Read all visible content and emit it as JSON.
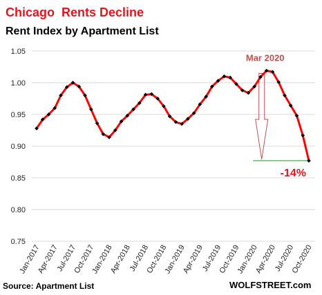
{
  "chart_data": {
    "type": "line",
    "title": "Chicago  Rents Decline",
    "subtitle": "Rent Index by Apartment List",
    "ylim": [
      0.75,
      1.05
    ],
    "yticks": [
      "0.75",
      "0.80",
      "0.85",
      "0.90",
      "0.95",
      "1.00",
      "1.05"
    ],
    "xtick_labels": [
      "Jan-2017",
      "Apr-2017",
      "Jul-2017",
      "Oct-2017",
      "Jan-2018",
      "Apr-2018",
      "Jul-2018",
      "Oct-2018",
      "Jan-2019",
      "Apr-2019",
      "Jul-2019",
      "Oct-2019",
      "Jan-2020",
      "Apr-2020",
      "Jul-2020",
      "Oct-2020"
    ],
    "grid": true,
    "series": [
      {
        "color": "#ff0000",
        "marker_color": "#000000",
        "values": [
          0.928,
          0.942,
          0.95,
          0.96,
          0.98,
          0.993,
          1.0,
          0.994,
          0.98,
          0.958,
          0.936,
          0.919,
          0.914,
          0.925,
          0.939,
          0.948,
          0.958,
          0.968,
          0.981,
          0.982,
          0.975,
          0.963,
          0.947,
          0.938,
          0.935,
          0.943,
          0.952,
          0.966,
          0.978,
          0.994,
          1.003,
          1.01,
          1.008,
          0.998,
          0.988,
          0.984,
          0.994,
          1.009,
          1.019,
          1.017,
          1.001,
          0.98,
          0.964,
          0.948,
          0.917,
          0.877
        ]
      }
    ],
    "annotations": {
      "peak_label": "Mar 2020",
      "change_label": "-14%",
      "peak_index": 38,
      "end_index": 45
    }
  },
  "footer": {
    "source": "Source: Apartment List",
    "brand": "WOLFSTREET.com"
  },
  "colors": {
    "title": "#e8141b",
    "line": "#ff0000",
    "annotation": "#c0504d",
    "baseline": "#4aa84a",
    "grid": "#d9d9d9"
  }
}
